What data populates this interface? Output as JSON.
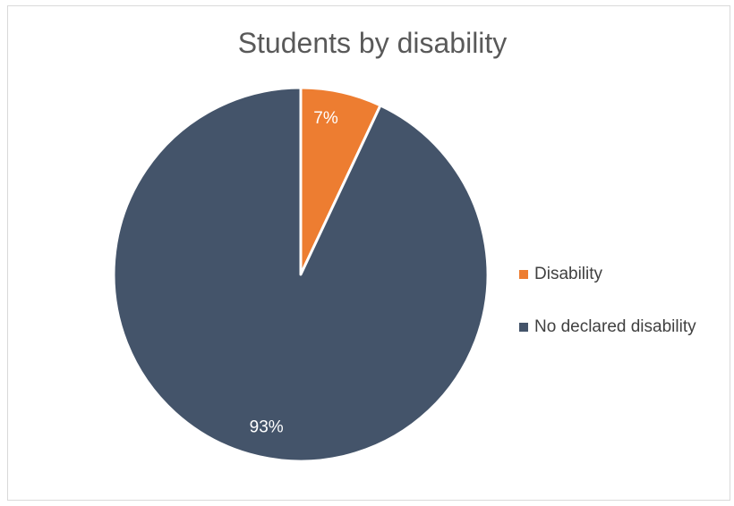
{
  "chart_data": {
    "type": "pie",
    "title": "Students by disability",
    "categories": [
      "Disability",
      "No declared disability"
    ],
    "values": [
      7,
      93
    ],
    "data_labels": [
      "7%",
      "93%"
    ],
    "colors": [
      "#ed7d31",
      "#44546a"
    ],
    "legend_position": "right"
  }
}
